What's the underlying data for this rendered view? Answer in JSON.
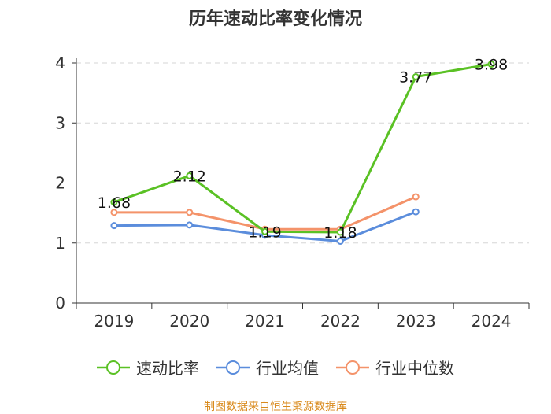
{
  "chart_data": {
    "type": "line",
    "title": "历年速动比率变化情况",
    "categories": [
      "2019",
      "2020",
      "2021",
      "2022",
      "2023",
      "2024"
    ],
    "ylim": [
      0,
      4
    ],
    "yticks": [
      0,
      1,
      2,
      3,
      4
    ],
    "grid": true,
    "legend_position": "bottom",
    "source": "制图数据来自恒生聚源数据库",
    "series": [
      {
        "name": "速动比率",
        "color": "#5ac124",
        "values": [
          1.68,
          2.12,
          1.19,
          1.18,
          3.77,
          3.98
        ],
        "labels": [
          "1.68",
          "2.12",
          "1.19",
          "1.18",
          "3.77",
          "3.98"
        ]
      },
      {
        "name": "行业均值",
        "color": "#5b8ddc",
        "values": [
          1.29,
          1.3,
          1.13,
          1.03,
          1.52,
          null
        ]
      },
      {
        "name": "行业中位数",
        "color": "#f4936a",
        "values": [
          1.51,
          1.51,
          1.23,
          1.23,
          1.77,
          null
        ]
      }
    ]
  }
}
